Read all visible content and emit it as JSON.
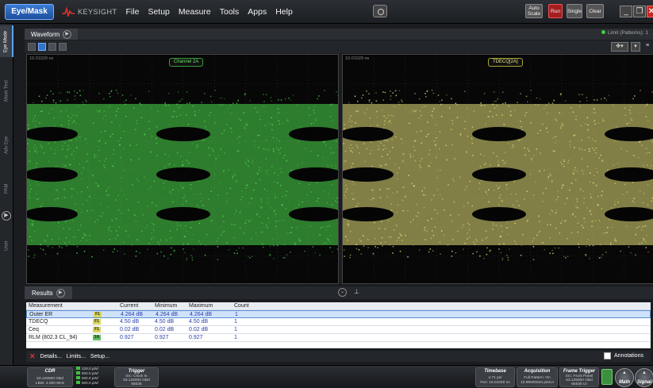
{
  "menubar": {
    "mode_button": "Eye/Mask",
    "brand": "KEYSIGHT",
    "items": [
      "File",
      "Setup",
      "Measure",
      "Tools",
      "Apps",
      "Help"
    ],
    "autoscale": "Auto Scale",
    "run": "Run",
    "single": "Single",
    "clear": "Clear"
  },
  "side_tabs": [
    "Eye Mode",
    "Mask Test",
    "Adv Eye",
    "PAM",
    "User"
  ],
  "waveform": {
    "tab": "Waveform",
    "limit_status": "Limit (Patterns): 1"
  },
  "panels": [
    {
      "time": "10.01029 ns",
      "label": "Channel 2A",
      "color": "#4fdc4f"
    },
    {
      "time": "10.01029 ns",
      "label": "TDECQ[2A]",
      "color": "#e6e27a"
    }
  ],
  "results": {
    "tab": "Results",
    "columns": [
      "Measurement",
      "Current",
      "Minimum",
      "Maximum",
      "Count"
    ],
    "rows": [
      {
        "name": "Outer ER",
        "badge": "F1",
        "current": "4.264 dB",
        "minimum": "4.264 dB",
        "maximum": "4.264 dB",
        "count": "1"
      },
      {
        "name": "TDECQ",
        "badge": "F1",
        "current": "4.50 dB",
        "minimum": "4.50 dB",
        "maximum": "4.50 dB",
        "count": "1"
      },
      {
        "name": "Ceq",
        "badge": "F1",
        "current": "0.02 dB",
        "minimum": "0.02 dB",
        "maximum": "0.02 dB",
        "count": "1"
      },
      {
        "name": "RLM (802.3 CL_94)",
        "badge": "2A",
        "current": "0.927",
        "minimum": "0.927",
        "maximum": "0.927",
        "count": "1"
      }
    ],
    "actions": [
      "Details...",
      "Limits...",
      "Setup..."
    ],
    "annotations": "Annotations"
  },
  "statusbar": {
    "cdr_title": "CDR",
    "cdr_lines": [
      "53.125000 GBd",
      "LBW: 4.000 MHz"
    ],
    "patterns": [
      "129.0 µW/",
      "500.0 µW/",
      "500.0 µW/",
      "500.0 µW/"
    ],
    "trigger_title": "Trigger",
    "trigger_lines": [
      "Src: Clock In",
      "53.125000 GBd",
      "65535"
    ],
    "timebase_title": "Timebase",
    "timebase_lines": [
      "4.71 ps/",
      "Pos: 10.01029 ns"
    ],
    "acquisition_title": "Acquisition",
    "acquisition_lines": [
      "Full Pattern: On",
      "10.99000534 pts/UI"
    ],
    "frame_title": "Frame Trigger",
    "frame_lines": [
      "Src: Front Panel",
      "53.125000 GBd",
      "65535 UI"
    ],
    "math": "Math",
    "signal": "Signal"
  }
}
